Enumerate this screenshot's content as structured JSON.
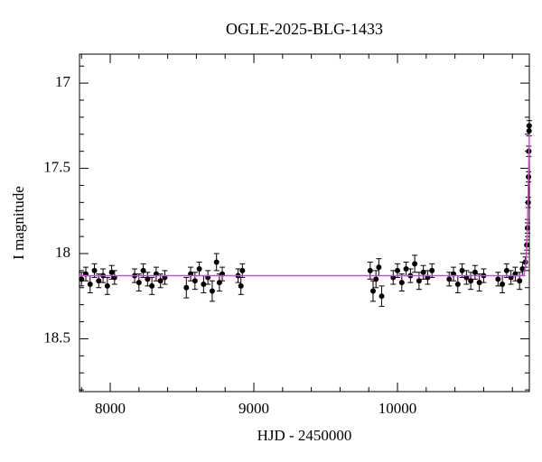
{
  "chart_data": {
    "type": "scatter",
    "title": "OGLE-2025-BLG-1433",
    "xlabel": "HJD - 2450000",
    "ylabel": "I magnitude",
    "xlim": [
      7786,
      10918
    ],
    "ylim": [
      18.81,
      16.83
    ],
    "xticks": [
      8000,
      9000,
      10000
    ],
    "yticks": [
      17,
      17.5,
      18,
      18.5
    ],
    "xticks_minor": [
      7800,
      8200,
      8400,
      8600,
      8800,
      9200,
      9400,
      9600,
      9800,
      10200,
      10400,
      10600,
      10800
    ],
    "yticks_minor": [
      16.9,
      17.1,
      17.2,
      17.3,
      17.4,
      17.6,
      17.7,
      17.8,
      17.9,
      18.1,
      18.2,
      18.3,
      18.4,
      18.6,
      18.7,
      18.8
    ],
    "points": {
      "color": "#000000",
      "x": [
        7800,
        7830,
        7860,
        7890,
        7920,
        7950,
        7980,
        8010,
        8030,
        8170,
        8200,
        8230,
        8260,
        8290,
        8320,
        8350,
        8380,
        8530,
        8560,
        8590,
        8620,
        8650,
        8680,
        8710,
        8740,
        8760,
        8780,
        8890,
        8910,
        8920,
        9810,
        9830,
        9850,
        9870,
        9890,
        9970,
        10000,
        10030,
        10060,
        10090,
        10120,
        10150,
        10180,
        10210,
        10240,
        10360,
        10390,
        10420,
        10450,
        10480,
        10510,
        10540,
        10570,
        10600,
        10700,
        10730,
        10760,
        10790,
        10820,
        10850,
        10870,
        10890,
        10900,
        10905,
        10910,
        10912,
        10914,
        10916,
        10917
      ],
      "y": [
        18.15,
        18.12,
        18.18,
        18.1,
        18.16,
        18.13,
        18.19,
        18.11,
        18.14,
        18.13,
        18.17,
        18.1,
        18.15,
        18.19,
        18.12,
        18.16,
        18.14,
        18.2,
        18.12,
        18.16,
        18.09,
        18.18,
        18.14,
        18.22,
        18.05,
        18.17,
        18.12,
        18.13,
        18.19,
        18.1,
        18.1,
        18.22,
        18.15,
        18.08,
        18.25,
        18.14,
        18.1,
        18.17,
        18.09,
        18.13,
        18.06,
        18.16,
        18.11,
        18.14,
        18.1,
        18.15,
        18.12,
        18.18,
        18.1,
        18.14,
        18.16,
        18.11,
        18.17,
        18.13,
        18.15,
        18.18,
        18.1,
        18.14,
        18.12,
        18.16,
        18.09,
        18.05,
        17.95,
        17.85,
        17.7,
        17.55,
        17.4,
        17.28,
        17.25
      ],
      "err": [
        0.04,
        0.04,
        0.05,
        0.04,
        0.04,
        0.04,
        0.05,
        0.04,
        0.04,
        0.04,
        0.05,
        0.04,
        0.04,
        0.05,
        0.04,
        0.04,
        0.04,
        0.06,
        0.04,
        0.05,
        0.04,
        0.05,
        0.04,
        0.06,
        0.05,
        0.05,
        0.04,
        0.04,
        0.05,
        0.04,
        0.05,
        0.06,
        0.05,
        0.05,
        0.06,
        0.04,
        0.04,
        0.05,
        0.04,
        0.04,
        0.05,
        0.05,
        0.04,
        0.04,
        0.04,
        0.04,
        0.04,
        0.05,
        0.04,
        0.04,
        0.05,
        0.04,
        0.05,
        0.04,
        0.04,
        0.05,
        0.04,
        0.04,
        0.04,
        0.05,
        0.04,
        0.03,
        0.03,
        0.03,
        0.03,
        0.03,
        0.03,
        0.03,
        0.03
      ]
    },
    "model": {
      "color": "#e040e0",
      "x": [
        7786,
        10880,
        10895,
        10905,
        10912,
        10918
      ],
      "y": [
        18.13,
        18.13,
        18.05,
        17.85,
        17.55,
        17.3
      ]
    }
  }
}
